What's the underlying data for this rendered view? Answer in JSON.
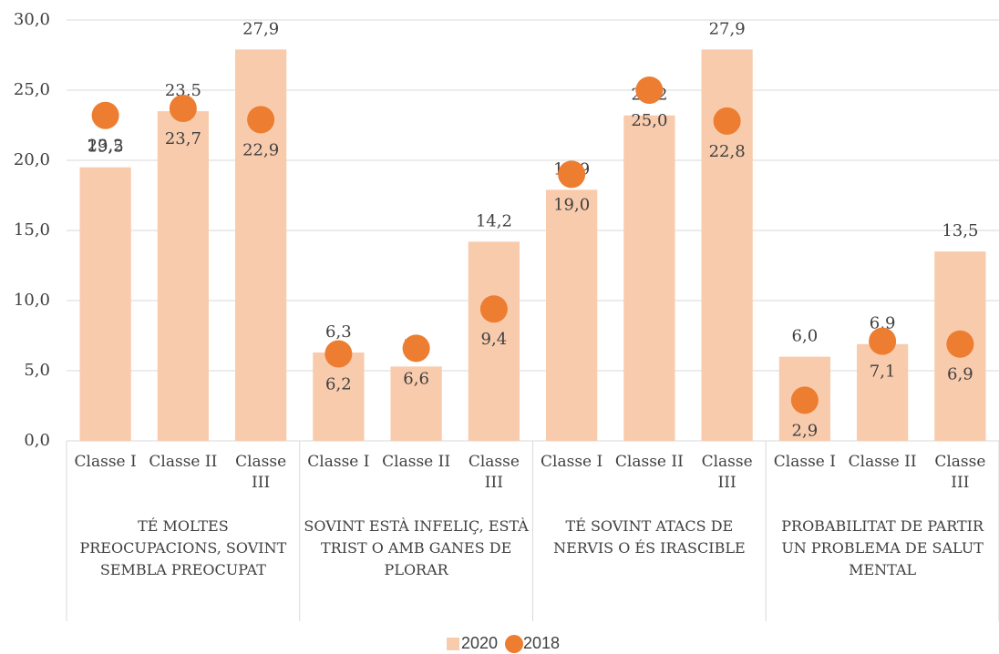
{
  "chart_data": {
    "type": "bar",
    "groups": [
      {
        "name": "TÉ MOLTES PREOCUPACIONS, SOVINT SEMBLA PREOCUPAT",
        "categories": [
          "Classe I",
          "Classe II",
          "Classe III"
        ]
      },
      {
        "name": "SOVINT ESTÀ INFELIÇ, ESTÀ TRIST O AMB GANES DE PLORAR",
        "categories": [
          "Classe I",
          "Classe II",
          "Classe III"
        ]
      },
      {
        "name": "TÉ SOVINT ATACS DE NERVIS O ÉS IRASCIBLE",
        "categories": [
          "Classe I",
          "Classe II",
          "Classe III"
        ]
      },
      {
        "name": "PROBABILITAT DE PARTIR UN PROBLEMA DE SALUT MENTAL",
        "categories": [
          "Classe I",
          "Classe II",
          "Classe III"
        ]
      }
    ],
    "series": [
      {
        "name": "2020",
        "type": "bar",
        "color": "#f8cbad",
        "values": [
          19.5,
          23.5,
          27.9,
          6.3,
          5.3,
          14.2,
          17.9,
          23.2,
          27.9,
          6.0,
          6.9,
          13.5
        ],
        "value_labels": [
          "19,5",
          "23,5",
          "27,9",
          "6,3",
          "5,3",
          "14,2",
          "17,9",
          "23,2",
          "27,9",
          "6,0",
          "6,9",
          "13,5"
        ]
      },
      {
        "name": "2018",
        "type": "scatter",
        "color": "#ed7d31",
        "values": [
          23.2,
          23.7,
          22.9,
          6.2,
          6.6,
          9.4,
          19.0,
          25.0,
          22.8,
          2.9,
          7.1,
          6.9
        ],
        "value_labels": [
          "23,2",
          "23,7",
          "22,9",
          "6,2",
          "6,6",
          "9,4",
          "19,0",
          "25,0",
          "22,8",
          "2,9",
          "7,1",
          "6,9"
        ]
      }
    ],
    "ylim": [
      0,
      30
    ],
    "yticks": [
      {
        "value": 0,
        "label": "0,0"
      },
      {
        "value": 5,
        "label": "5,0"
      },
      {
        "value": 10,
        "label": "10,0"
      },
      {
        "value": 15,
        "label": "15,0"
      },
      {
        "value": 20,
        "label": "20,0"
      },
      {
        "value": 25,
        "label": "25,0"
      },
      {
        "value": 30,
        "label": "30,0"
      }
    ],
    "grid": true,
    "legend": "bottom"
  }
}
